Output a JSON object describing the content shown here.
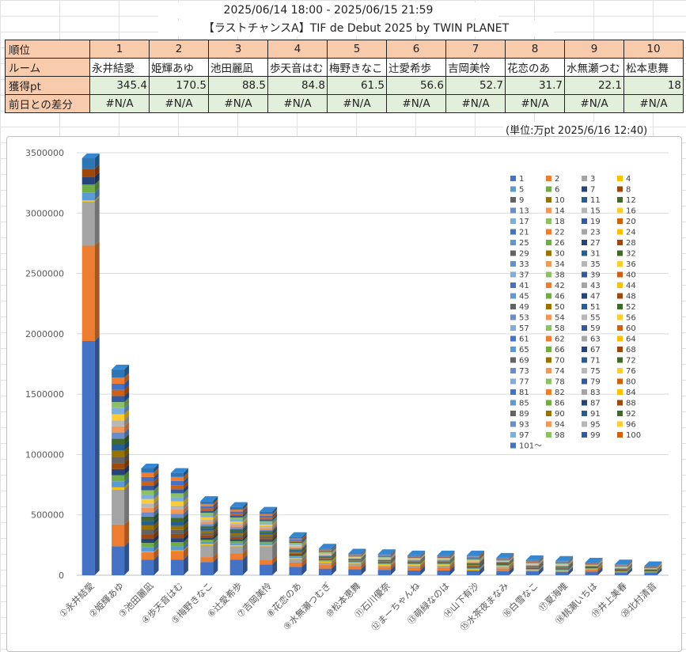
{
  "header": {
    "period": "2025/06/14 18:00 - 2025/06/15 21:59",
    "event": "【ラストチャンスA】TIF de Debut 2025 by TWIN PLANET"
  },
  "table": {
    "labels": [
      "順位",
      "ルーム",
      "獲得pt",
      "前日との差分"
    ],
    "ranks": [
      "1",
      "2",
      "3",
      "4",
      "5",
      "6",
      "7",
      "8",
      "9",
      "10"
    ],
    "rooms": [
      "永井結愛",
      "姫輝あゆ",
      "池田麗凪",
      "歩天音はむ",
      "梅野きなこ",
      "辻愛希歩",
      "吉岡美怜",
      "花恋のあ",
      "水無瀬つむ",
      "松本恵舞"
    ],
    "points": [
      "345.4",
      "170.5",
      "88.5",
      "84.8",
      "61.5",
      "56.6",
      "52.7",
      "31.7",
      "22.1",
      "18"
    ],
    "diffs": [
      "#N/A",
      "#N/A",
      "#N/A",
      "#N/A",
      "#N/A",
      "#N/A",
      "#N/A",
      "#N/A",
      "#N/A",
      "#N/A"
    ]
  },
  "unit_note": "(単位:万pt  2025/6/16 12:40)",
  "chart_data": {
    "type": "bar",
    "stacked": true,
    "categories": [
      "①永井結愛",
      "②姫輝あゆ",
      "③池田麗凪",
      "④歩天音はむ",
      "⑤梅野きなこ",
      "⑥辻愛希歩",
      "⑦吉岡美怜",
      "⑧花恋のあ",
      "⑨水無瀬つむぎ",
      "⑩松本恵舞",
      "⑪石川優奈",
      "⑫まーちゃんね",
      "⑬萌緑なのは",
      "⑭山下有沙",
      "⑮水茶夜まなみ",
      "⑯白雪なこ",
      "⑰夏海唯",
      "⑱桃瀬いちは",
      "⑲井上美春",
      "⑳北村清音"
    ],
    "totals": [
      3454000,
      1705000,
      885000,
      848000,
      615000,
      566000,
      527000,
      317000,
      221000,
      180000,
      175000,
      165000,
      165000,
      165000,
      145000,
      125000,
      120000,
      105000,
      90000,
      75000
    ],
    "series_names": [
      "1",
      "2",
      "3",
      "4",
      "5",
      "6",
      "7",
      "8",
      "9",
      "10",
      "11",
      "12",
      "13",
      "14",
      "15",
      "16",
      "17",
      "18",
      "19",
      "20",
      "21",
      "22",
      "23",
      "24",
      "25",
      "26",
      "27",
      "28",
      "29",
      "30",
      "31",
      "32",
      "33",
      "34",
      "35",
      "36",
      "37",
      "38",
      "39",
      "40",
      "41",
      "42",
      "43",
      "44",
      "45",
      "46",
      "47",
      "48",
      "49",
      "50",
      "51",
      "52",
      "53",
      "54",
      "55",
      "56",
      "57",
      "58",
      "59",
      "60",
      "61",
      "62",
      "63",
      "64",
      "65",
      "66",
      "67",
      "68",
      "69",
      "70",
      "71",
      "72",
      "73",
      "74",
      "75",
      "76",
      "77",
      "78",
      "79",
      "80",
      "81",
      "82",
      "83",
      "84",
      "85",
      "86",
      "87",
      "88",
      "89",
      "90",
      "91",
      "92",
      "93",
      "94",
      "95",
      "96",
      "97",
      "98",
      "99",
      "100",
      "101〜"
    ],
    "series_top10": [
      [
        1940000,
        240000,
        130000,
        130000,
        110000,
        130000,
        90000,
        70000,
        55000,
        50000,
        45000,
        40000,
        40000,
        40000,
        35000,
        35000,
        30000,
        30000,
        25000,
        25000
      ],
      [
        790000,
        180000,
        60000,
        70000,
        40000,
        50000,
        40000,
        35000,
        30000,
        25000,
        25000,
        25000,
        25000,
        0,
        20000,
        0,
        0,
        20000,
        0,
        0
      ],
      [
        365000,
        290000,
        0,
        0,
        100000,
        60000,
        110000,
        30000,
        20000,
        20000,
        10000,
        15000,
        15000,
        0,
        15000,
        0,
        0,
        0,
        0,
        0
      ],
      [
        10000,
        18000,
        5000,
        6000,
        8000,
        10000,
        10000,
        8000,
        10000,
        10000,
        10000,
        10000,
        10000,
        10000,
        8000,
        8000,
        8000,
        5000,
        5000,
        5000
      ],
      [
        0,
        0,
        0,
        0,
        0,
        0,
        0,
        0,
        0,
        0,
        0,
        0,
        0,
        0,
        0,
        0,
        0,
        0,
        0,
        0
      ]
    ],
    "ylim": [
      0,
      3500000
    ],
    "yticks": [
      "0",
      "500000",
      "1000000",
      "1500000",
      "2000000",
      "2500000",
      "3000000",
      "3500000"
    ],
    "legend_position": "right",
    "grid": true,
    "colors": [
      "#4472c4",
      "#ed7d31",
      "#a5a5a5",
      "#ffc000",
      "#5b9bd5",
      "#70ad47",
      "#264478",
      "#9e480e",
      "#636363",
      "#997300",
      "#255e91",
      "#43682b",
      "#698ed0",
      "#f1975a",
      "#b7b7b7",
      "#ffcd33",
      "#7cafdd",
      "#8cc168",
      "#335aa1",
      "#d26012"
    ]
  }
}
